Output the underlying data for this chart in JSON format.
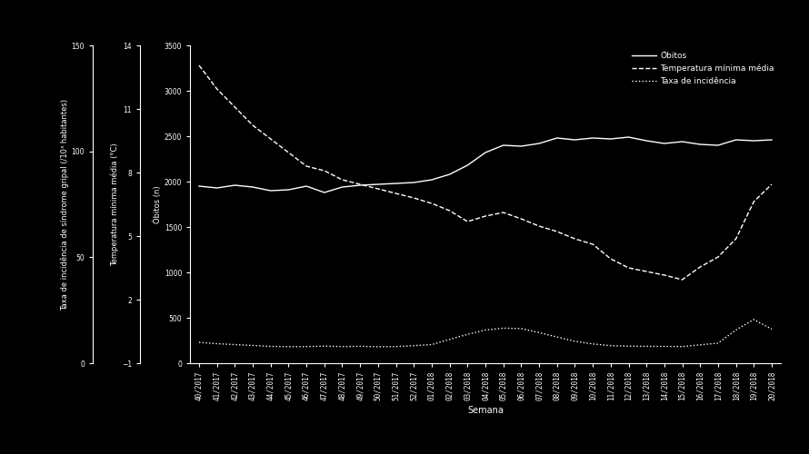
{
  "background_color": "#000000",
  "text_color": "#ffffff",
  "fig_width": 8.9,
  "fig_height": 5.0,
  "xlabel": "Semana",
  "ylabel_incid": "Taxa de incidência de síndrome gripal (/10³ habitantes)",
  "ylabel_temp": "Temperatura mínima média (°C)",
  "ylabel_obitos": "Óbitos (n)",
  "ylim_incidencia": [
    0,
    150
  ],
  "ylim_temp": [
    -1,
    14
  ],
  "ylim_obitos": [
    0,
    3500
  ],
  "yticks_incidencia": [
    0,
    50,
    100,
    150
  ],
  "yticks_temp": [
    -1,
    2,
    5,
    8,
    11,
    14
  ],
  "yticks_obitos": [
    0,
    500,
    1000,
    1500,
    2000,
    2500,
    3000,
    3500
  ],
  "legend_labels": [
    "Óbitos",
    "Temperatura mínima média",
    "Taxa de incidência"
  ],
  "x_tick_labels": [
    "40/2017",
    "41/2017",
    "42/2017",
    "43/2017",
    "44/2017",
    "45/2017",
    "46/2017",
    "47/2017",
    "48/2017",
    "49/2017",
    "50/2017",
    "51/2017",
    "52/2017",
    "01/2018",
    "02/2018",
    "03/2018",
    "04/2018",
    "05/2018",
    "06/2018",
    "07/2018",
    "08/2018",
    "09/2018",
    "10/2018",
    "11/2018",
    "12/2018",
    "13/2018",
    "14/2018",
    "15/2018",
    "16/2018",
    "17/2018",
    "18/2018",
    "19/2018",
    "20/2018"
  ],
  "obitos_values": [
    1950,
    1930,
    1960,
    1940,
    1900,
    1910,
    1950,
    1880,
    1940,
    1960,
    1970,
    1980,
    1990,
    2020,
    2080,
    2180,
    2320,
    2400,
    2390,
    2420,
    2480,
    2460,
    2480,
    2470,
    2490,
    2450,
    2420,
    2440,
    2410,
    2400,
    2460,
    2450,
    2460
  ],
  "temp_obitos_scale": [
    3280,
    3020,
    2820,
    2620,
    2470,
    2320,
    2170,
    2120,
    2020,
    1970,
    1920,
    1870,
    1820,
    1760,
    1680,
    1560,
    1620,
    1660,
    1590,
    1510,
    1450,
    1370,
    1310,
    1150,
    1050,
    1010,
    970,
    920,
    1060,
    1170,
    1370,
    1780,
    1970
  ],
  "incid_obitos_scale": [
    230,
    215,
    205,
    195,
    185,
    182,
    183,
    188,
    183,
    186,
    181,
    183,
    193,
    205,
    262,
    318,
    366,
    386,
    381,
    337,
    289,
    241,
    212,
    193,
    188,
    186,
    185,
    183,
    202,
    221,
    366,
    481,
    375
  ],
  "line_color": "#ffffff",
  "fontsize_labels": 6,
  "fontsize_ticks": 5.5,
  "fontsize_legend": 6.5
}
